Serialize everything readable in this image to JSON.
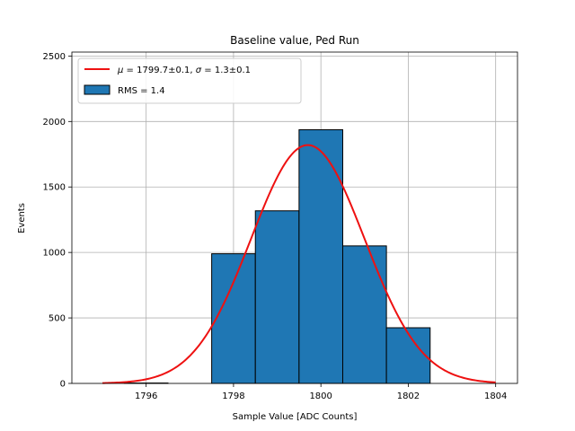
{
  "chart_data": {
    "type": "bar",
    "title": "Baseline value, Ped Run",
    "xlabel": "Sample Value [ADC Counts]",
    "ylabel": "Events",
    "xlim": [
      1794.3,
      1804.5
    ],
    "ylim": [
      0,
      2530
    ],
    "grid": true,
    "legend_position": "top-left",
    "x_ticks": [
      1796,
      1798,
      1800,
      1802,
      1804
    ],
    "y_ticks": [
      0,
      500,
      1000,
      1500,
      2000,
      2500
    ],
    "histogram": {
      "name": "RMS = 1.4",
      "bins": [
        {
          "start": 1794.5,
          "end": 1795.5,
          "count": 0
        },
        {
          "start": 1795.5,
          "end": 1796.5,
          "count": 3
        },
        {
          "start": 1796.5,
          "end": 1797.5,
          "count": 0
        },
        {
          "start": 1797.5,
          "end": 1798.5,
          "count": 990
        },
        {
          "start": 1798.5,
          "end": 1799.5,
          "count": 1318
        },
        {
          "start": 1799.5,
          "end": 1800.5,
          "count": 1937
        },
        {
          "start": 1800.5,
          "end": 1801.5,
          "count": 1050
        },
        {
          "start": 1801.5,
          "end": 1802.5,
          "count": 425
        }
      ],
      "color": "#1f77b4",
      "edge_color": "#000000"
    },
    "fit": {
      "name": "μ = 1799.7±0.1, σ = 1.3±0.1",
      "type": "gaussian",
      "mu": 1799.7,
      "sigma": 1.3,
      "amplitude": 1820,
      "x_range": [
        1795,
        1804
      ],
      "color": "#ee1111"
    },
    "legend": {
      "fit_label_mu": "μ",
      "fit_label_mu_rest": " = 1799.7±0.1, ",
      "fit_label_sigma": "σ",
      "fit_label_sigma_rest": " = 1.3±0.1",
      "hist_label": "RMS = 1.4"
    }
  }
}
